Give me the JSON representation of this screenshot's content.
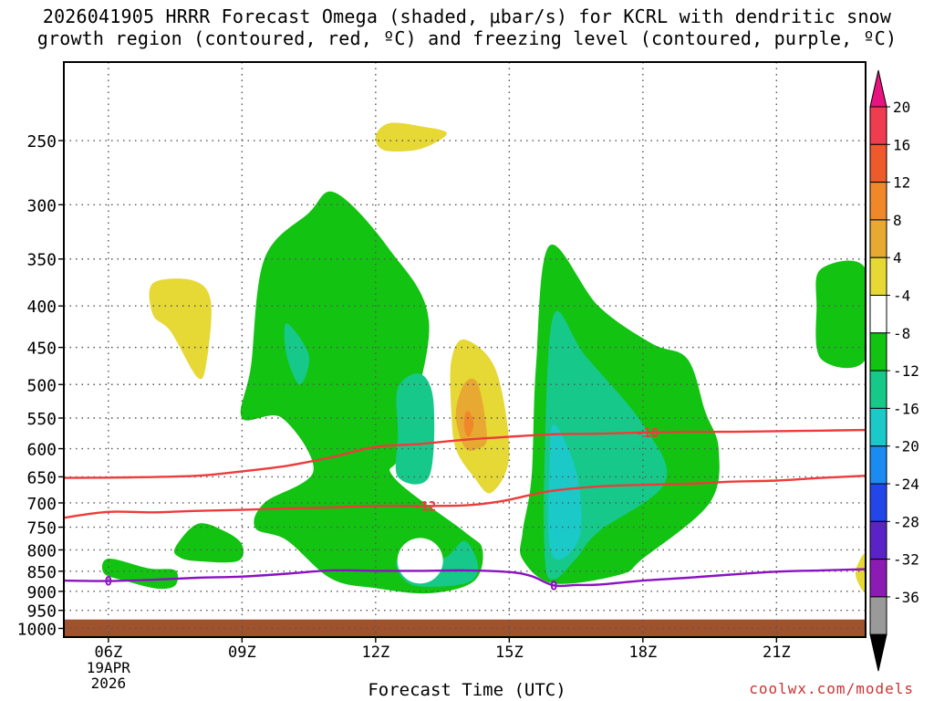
{
  "title_line1": "2026041905 HRRR Forecast Omega (shaded, μbar/s) for KCRL with dendritic snow",
  "title_line2": "growth region (contoured, red, ºC) and freezing level (contoured, purple, ºC)",
  "credit": "coolwx.com/models",
  "chart_data": {
    "type": "heatmap",
    "xlabel": "Forecast Time (UTC)",
    "ylabel": "",
    "x_ticks": [
      "06Z",
      "09Z",
      "12Z",
      "15Z",
      "18Z",
      "21Z"
    ],
    "x_tick_hours": [
      6,
      9,
      12,
      15,
      18,
      21
    ],
    "x_date_label": [
      "19APR",
      "2026"
    ],
    "xlim_hours": [
      5,
      23
    ],
    "y_ticks": [
      250,
      300,
      350,
      400,
      450,
      500,
      550,
      600,
      650,
      700,
      750,
      800,
      850,
      900,
      950,
      1000
    ],
    "ylim_hpa": [
      200,
      1025
    ],
    "y_scale": "log",
    "grid": true,
    "colorbar": {
      "labels": [
        "20",
        "16",
        "12",
        "8",
        "4",
        "-4",
        "-8",
        "-12",
        "-16",
        "-20",
        "-24",
        "-28",
        "-32",
        "-36"
      ],
      "colors": [
        "#ef3d4f",
        "#ee5a2c",
        "#f0882a",
        "#e8a933",
        "#e6d835",
        "#ffffff",
        "#12c312",
        "#16c98a",
        "#1bc9c9",
        "#1a8bf0",
        "#2246e8",
        "#5a23c8",
        "#8c1bb3",
        "#9a9a9a"
      ],
      "top_arrow_color": "#e8137e",
      "bottom_arrow_color": "#000000"
    },
    "ground_color": "#a0522d",
    "contours": [
      {
        "label": "-18",
        "color": "#ee3b3b",
        "points": [
          [
            5.0,
            652
          ],
          [
            6.5,
            651
          ],
          [
            8.0,
            648
          ],
          [
            9.0,
            640
          ],
          [
            10.0,
            630
          ],
          [
            11.0,
            615
          ],
          [
            12.0,
            597
          ],
          [
            13.0,
            592
          ],
          [
            14.0,
            585
          ],
          [
            15.0,
            580
          ],
          [
            16.0,
            576
          ],
          [
            17.0,
            575
          ],
          [
            18.0,
            573
          ],
          [
            19.0,
            572
          ],
          [
            20.0,
            572
          ],
          [
            21.0,
            571
          ],
          [
            22.0,
            570
          ],
          [
            23.0,
            569
          ]
        ]
      },
      {
        "label": "-12",
        "color": "#ee3b3b",
        "points": [
          [
            5.0,
            730
          ],
          [
            6.0,
            718
          ],
          [
            7.0,
            719
          ],
          [
            8.0,
            716
          ],
          [
            9.0,
            714
          ],
          [
            10.0,
            711
          ],
          [
            11.0,
            709
          ],
          [
            12.0,
            706
          ],
          [
            13.0,
            706
          ],
          [
            14.0,
            705
          ],
          [
            14.8,
            697
          ],
          [
            15.5,
            684
          ],
          [
            16.0,
            676
          ],
          [
            17.0,
            668
          ],
          [
            18.0,
            665
          ],
          [
            19.0,
            663
          ],
          [
            20.0,
            659
          ],
          [
            21.0,
            657
          ],
          [
            22.0,
            652
          ],
          [
            23.0,
            648
          ]
        ]
      },
      {
        "label": "0",
        "color": "#8b12c0",
        "points": [
          [
            5.0,
            873
          ],
          [
            6.0,
            874
          ],
          [
            7.0,
            871
          ],
          [
            8.0,
            866
          ],
          [
            9.0,
            863
          ],
          [
            10.0,
            856
          ],
          [
            11.0,
            848
          ],
          [
            12.0,
            849
          ],
          [
            13.0,
            849
          ],
          [
            14.0,
            848
          ],
          [
            15.0,
            852
          ],
          [
            15.5,
            862
          ],
          [
            16.0,
            885
          ],
          [
            16.5,
            884
          ],
          [
            17.0,
            883
          ],
          [
            18.0,
            873
          ],
          [
            19.0,
            866
          ],
          [
            20.0,
            858
          ],
          [
            21.0,
            851
          ],
          [
            22.0,
            848
          ],
          [
            23.0,
            845
          ]
        ]
      }
    ],
    "contour_labels": [
      {
        "text": "-18",
        "x": 18.1,
        "y": 573
      },
      {
        "text": "-12",
        "x": 13.1,
        "y": 706
      },
      {
        "text": "0",
        "x": 6.0,
        "y": 874
      },
      {
        "text": "0",
        "x": 16.0,
        "y": 885
      }
    ],
    "shaded_regions": [
      {
        "name": "updraft-upper",
        "color": "#e6d835",
        "points": [
          [
            12.0,
            247
          ],
          [
            12.3,
            238
          ],
          [
            13.0,
            240
          ],
          [
            13.6,
            245
          ],
          [
            13.0,
            256
          ],
          [
            12.2,
            257
          ]
        ]
      },
      {
        "name": "updraft-07z",
        "color": "#e6d835",
        "points": [
          [
            7.0,
            375
          ],
          [
            7.9,
            372
          ],
          [
            8.3,
            395
          ],
          [
            8.2,
            470
          ],
          [
            8.0,
            490
          ],
          [
            7.4,
            430
          ],
          [
            7.0,
            410
          ]
        ]
      },
      {
        "name": "ascent-early",
        "color": "#12c312",
        "points": [
          [
            6.0,
            820
          ],
          [
            6.9,
            843
          ],
          [
            7.5,
            848
          ],
          [
            7.5,
            885
          ],
          [
            7.1,
            893
          ],
          [
            6.4,
            874
          ],
          [
            5.9,
            855
          ]
        ]
      },
      {
        "name": "ascent-0730",
        "color": "#12c312",
        "points": [
          [
            7.5,
            795
          ],
          [
            8.0,
            743
          ],
          [
            8.6,
            758
          ],
          [
            9.0,
            788
          ],
          [
            8.9,
            826
          ],
          [
            8.0,
            826
          ],
          [
            7.6,
            817
          ]
        ]
      },
      {
        "name": "descent-main",
        "color": "#12c312",
        "points": [
          [
            9.2,
            475
          ],
          [
            9.5,
            350
          ],
          [
            10.5,
            307
          ],
          [
            11.1,
            290
          ],
          [
            12.3,
            340
          ],
          [
            13.2,
            420
          ],
          [
            12.6,
            600
          ],
          [
            12.4,
            650
          ],
          [
            14.0,
            760
          ],
          [
            14.4,
            800
          ],
          [
            14.2,
            875
          ],
          [
            13.2,
            905
          ],
          [
            12.0,
            892
          ],
          [
            11.0,
            868
          ],
          [
            10.0,
            778
          ],
          [
            9.3,
            752
          ],
          [
            9.5,
            700
          ],
          [
            10.6,
            640
          ],
          [
            9.9,
            550
          ],
          [
            9.0,
            550
          ]
        ]
      },
      {
        "name": "core-main-a",
        "color": "#16c98a",
        "points": [
          [
            10.0,
            420
          ],
          [
            10.5,
            460
          ],
          [
            10.3,
            500
          ],
          [
            10.0,
            460
          ]
        ]
      },
      {
        "name": "core-main-b",
        "color": "#16c98a",
        "points": [
          [
            12.5,
            505
          ],
          [
            13.0,
            485
          ],
          [
            13.3,
            525
          ],
          [
            13.2,
            650
          ],
          [
            12.5,
            650
          ],
          [
            12.5,
            575
          ]
        ]
      },
      {
        "name": "core-main-c",
        "color": "#16c98a",
        "points": [
          [
            12.5,
            822
          ],
          [
            13.5,
            820
          ],
          [
            14.0,
            780
          ],
          [
            14.3,
            840
          ],
          [
            14.0,
            880
          ],
          [
            12.8,
            883
          ]
        ]
      },
      {
        "name": "updraft-14z",
        "color": "#e6d835",
        "points": [
          [
            13.7,
            467
          ],
          [
            14.0,
            440
          ],
          [
            14.7,
            480
          ],
          [
            15.0,
            610
          ],
          [
            14.6,
            680
          ],
          [
            14.2,
            650
          ],
          [
            13.8,
            600
          ],
          [
            13.7,
            540
          ]
        ]
      },
      {
        "name": "updraft-14z-core",
        "color": "#e8a933",
        "points": [
          [
            13.8,
            545
          ],
          [
            14.0,
            498
          ],
          [
            14.3,
            500
          ],
          [
            14.5,
            580
          ],
          [
            14.3,
            600
          ],
          [
            14.0,
            598
          ]
        ]
      },
      {
        "name": "updraft-14z-peak",
        "color": "#f0882a",
        "points": [
          [
            14.0,
            545
          ],
          [
            14.1,
            540
          ],
          [
            14.2,
            560
          ],
          [
            14.1,
            580
          ],
          [
            14.0,
            570
          ]
        ]
      },
      {
        "name": "descent-16z",
        "color": "#12c312",
        "points": [
          [
            15.6,
            475
          ],
          [
            15.9,
            337
          ],
          [
            17.0,
            400
          ],
          [
            18.2,
            445
          ],
          [
            19.0,
            465
          ],
          [
            19.4,
            540
          ],
          [
            19.7,
            600
          ],
          [
            19.5,
            700
          ],
          [
            18.0,
            820
          ],
          [
            17.5,
            858
          ],
          [
            16.0,
            880
          ],
          [
            15.3,
            822
          ],
          [
            15.3,
            760
          ],
          [
            15.5,
            650
          ]
        ]
      },
      {
        "name": "core-16z",
        "color": "#16c98a",
        "points": [
          [
            16.0,
            410
          ],
          [
            16.7,
            460
          ],
          [
            18.0,
            560
          ],
          [
            18.5,
            660
          ],
          [
            17.0,
            760
          ],
          [
            16.5,
            820
          ],
          [
            16.0,
            870
          ],
          [
            15.8,
            820
          ],
          [
            15.8,
            600
          ]
        ]
      },
      {
        "name": "core-16z-deep",
        "color": "#1bc9c9",
        "points": [
          [
            16.0,
            560
          ],
          [
            16.5,
            640
          ],
          [
            16.6,
            760
          ],
          [
            16.2,
            820
          ],
          [
            15.9,
            790
          ],
          [
            15.9,
            640
          ]
        ]
      },
      {
        "name": "descent-late",
        "color": "#12c312",
        "points": [
          [
            22.0,
            360
          ],
          [
            23.0,
            360
          ],
          [
            23.0,
            465
          ],
          [
            22.0,
            465
          ],
          [
            21.9,
            400
          ]
        ]
      },
      {
        "name": "updraft-late",
        "color": "#e6d835",
        "points": [
          [
            23.0,
            810
          ],
          [
            23.0,
            900
          ],
          [
            22.8,
            870
          ],
          [
            22.8,
            840
          ]
        ]
      }
    ]
  }
}
